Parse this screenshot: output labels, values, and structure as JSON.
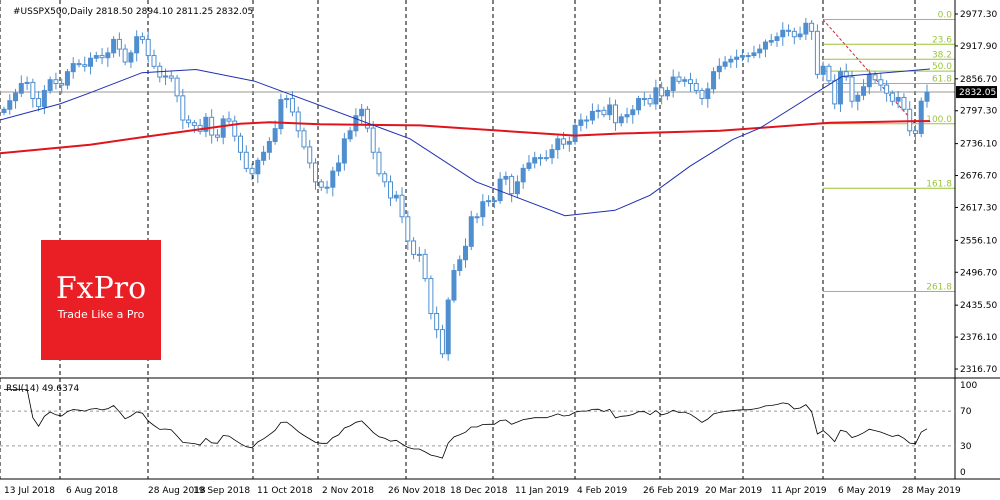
{
  "header": {
    "symbol_info": "#USSPX500,Daily  2818.50 2894.10 2811.25 2832.05",
    "rsi_label": "RSI(14) 49.6374"
  },
  "brand": {
    "name": "FxPro",
    "tagline": "Trade Like a Pro",
    "color": "#ea1f25"
  },
  "colors": {
    "bull": "#4f8fd0",
    "ma_blue": "#1f2fb0",
    "ma_red": "#e0141c",
    "fib": "#9ac43c",
    "rsi": "#000000"
  },
  "chart_data": {
    "type": "candlestick",
    "price_axis": {
      "ticks": [
        "2977.30",
        "2917.90",
        "2856.70",
        "2797.30",
        "2736.10",
        "2676.70",
        "2617.30",
        "2556.10",
        "2496.70",
        "2435.50",
        "2376.10",
        "2316.70"
      ],
      "ylim": [
        2316.7,
        2977.3
      ],
      "current_price": "2832.05"
    },
    "x_axis": {
      "ticks": [
        "13 Jul 2018",
        "6 Aug 2018",
        "28 Aug 2018",
        "19 Sep 2018",
        "11 Oct 2018",
        "2 Nov 2018",
        "26 Nov 2018",
        "18 Dec 2018",
        "11 Jan 2019",
        "4 Feb 2019",
        "26 Feb 2019",
        "20 Mar 2019",
        "11 Apr 2019",
        "6 May 2019",
        "28 May 2019"
      ]
    },
    "close_series": [
      2800,
      2816,
      2830,
      2848,
      2850,
      2820,
      2805,
      2835,
      2855,
      2848,
      2845,
      2870,
      2885,
      2883,
      2880,
      2895,
      2900,
      2896,
      2905,
      2930,
      2912,
      2888,
      2905,
      2935,
      2930,
      2900,
      2880,
      2860,
      2862,
      2858,
      2825,
      2780,
      2775,
      2770,
      2759,
      2785,
      2752,
      2748,
      2782,
      2778,
      2750,
      2720,
      2690,
      2680,
      2705,
      2720,
      2740,
      2764,
      2818,
      2820,
      2795,
      2760,
      2730,
      2700,
      2665,
      2655,
      2655,
      2685,
      2700,
      2745,
      2760,
      2788,
      2800,
      2765,
      2720,
      2680,
      2665,
      2635,
      2640,
      2600,
      2555,
      2530,
      2530,
      2485,
      2420,
      2390,
      2345,
      2445,
      2500,
      2520,
      2545,
      2600,
      2600,
      2628,
      2630,
      2630,
      2670,
      2675,
      2643,
      2665,
      2690,
      2700,
      2710,
      2710,
      2710,
      2725,
      2745,
      2735,
      2740,
      2770,
      2780,
      2780,
      2796,
      2798,
      2790,
      2808,
      2775,
      2786,
      2790,
      2799,
      2820,
      2820,
      2810,
      2840,
      2825,
      2835,
      2860,
      2852,
      2855,
      2848,
      2835,
      2820,
      2838,
      2870,
      2880,
      2888,
      2893,
      2897,
      2900,
      2900,
      2905,
      2912,
      2925,
      2928,
      2935,
      2947,
      2945,
      2935,
      2940,
      2960,
      2945,
      2865,
      2880,
      2853,
      2810,
      2870,
      2860,
      2815,
      2826,
      2842,
      2864,
      2855,
      2845,
      2830,
      2815,
      2822,
      2800,
      2760,
      2755,
      2815,
      2832
    ],
    "moving_averages": {
      "blue_ma": {
        "x": [
          0,
          60,
          89,
          142,
          196,
          255,
          410,
          476,
          565,
          615,
          650,
          690,
          733,
          760,
          842,
          930
        ],
        "y": [
          2780,
          2810,
          2830,
          2868,
          2874,
          2852,
          2745,
          2665,
          2602,
          2612,
          2640,
          2694,
          2744,
          2765,
          2861,
          2875
        ]
      },
      "red_ma": {
        "x": [
          0,
          90,
          150,
          240,
          270,
          320,
          420,
          575,
          620,
          720,
          830,
          915,
          930
        ],
        "y": [
          2718,
          2734,
          2750,
          2773,
          2776,
          2772,
          2770,
          2751,
          2755,
          2760,
          2775,
          2778,
          2778
        ]
      }
    },
    "fibonacci": [
      {
        "level": "0.0",
        "price": 2967
      },
      {
        "level": "23.6",
        "price": 2921
      },
      {
        "level": "38.2",
        "price": 2893
      },
      {
        "level": "50.0",
        "price": 2871
      },
      {
        "level": "61.8",
        "price": 2848
      },
      {
        "level": "100.0",
        "price": 2773
      },
      {
        "level": "161.8",
        "price": 2653
      },
      {
        "level": "261.8",
        "price": 2461
      }
    ],
    "rsi": {
      "label": "RSI(14)",
      "value": 49.6374,
      "ylim": [
        0,
        100
      ],
      "ticks": [
        "100",
        "70",
        "30",
        "0"
      ],
      "levels": [
        70,
        30
      ]
    },
    "grid": true
  }
}
